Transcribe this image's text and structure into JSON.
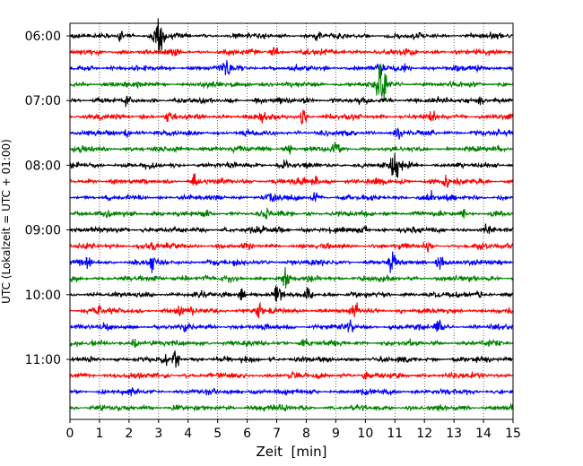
{
  "chart_data": {
    "type": "line",
    "title": "",
    "xlabel": "Zeit  [min]",
    "ylabel": "UTC (Lokalzeit = UTC + 01:00)",
    "xlim": [
      0,
      15
    ],
    "x_ticks": [
      0,
      1,
      2,
      3,
      4,
      5,
      6,
      7,
      8,
      9,
      10,
      11,
      12,
      13,
      14,
      15
    ],
    "grid": {
      "vertical": true,
      "style": "dotted"
    },
    "y_tick_labels": [
      "06:00",
      "07:00",
      "08:00",
      "09:00",
      "10:00",
      "11:00"
    ],
    "y_tick_trace_index": [
      0,
      4,
      8,
      12,
      16,
      20
    ],
    "trace_colors": [
      "#000000",
      "#ff0000",
      "#0000ff",
      "#008000"
    ],
    "traces": [
      {
        "start": "06:00",
        "events": [
          {
            "t": 1.7,
            "amp": 4
          },
          {
            "t": 3.0,
            "amp": 14
          },
          {
            "t": 8.4,
            "amp": 3
          }
        ]
      },
      {
        "start": "06:15",
        "events": [
          {
            "t": 6.9,
            "amp": 5
          },
          {
            "t": 3.5,
            "amp": 2
          }
        ]
      },
      {
        "start": "06:30",
        "events": [
          {
            "t": 5.3,
            "amp": 7
          },
          {
            "t": 10.5,
            "amp": 4
          },
          {
            "t": 11.3,
            "amp": 3
          }
        ]
      },
      {
        "start": "06:45",
        "events": [
          {
            "t": 10.55,
            "amp": 18
          },
          {
            "t": 6.0,
            "amp": 2
          }
        ]
      },
      {
        "start": "07:00",
        "events": [
          {
            "t": 1.9,
            "amp": 4
          },
          {
            "t": 13.9,
            "amp": 5
          },
          {
            "t": 8.0,
            "amp": 3
          }
        ]
      },
      {
        "start": "07:15",
        "events": [
          {
            "t": 3.3,
            "amp": 3
          },
          {
            "t": 6.5,
            "amp": 3
          },
          {
            "t": 7.9,
            "amp": 5
          },
          {
            "t": 12.3,
            "amp": 3
          }
        ]
      },
      {
        "start": "07:30",
        "events": [
          {
            "t": 1.9,
            "amp": 4
          },
          {
            "t": 11.1,
            "amp": 3
          }
        ]
      },
      {
        "start": "07:45",
        "events": [
          {
            "t": 4.5,
            "amp": 3
          },
          {
            "t": 7.4,
            "amp": 5
          },
          {
            "t": 9.0,
            "amp": 5
          }
        ]
      },
      {
        "start": "08:00",
        "events": [
          {
            "t": 11.0,
            "amp": 13
          },
          {
            "t": 7.3,
            "amp": 3
          },
          {
            "t": 11.5,
            "amp": 3
          }
        ]
      },
      {
        "start": "08:15",
        "events": [
          {
            "t": 4.2,
            "amp": 4
          },
          {
            "t": 8.3,
            "amp": 4
          },
          {
            "t": 12.7,
            "amp": 6
          }
        ]
      },
      {
        "start": "08:30",
        "events": [
          {
            "t": 6.8,
            "amp": 5
          },
          {
            "t": 8.3,
            "amp": 4
          },
          {
            "t": 12.2,
            "amp": 3
          }
        ]
      },
      {
        "start": "08:45",
        "events": [
          {
            "t": 4.6,
            "amp": 3
          },
          {
            "t": 6.7,
            "amp": 3
          },
          {
            "t": 13.3,
            "amp": 4
          }
        ]
      },
      {
        "start": "09:00",
        "events": [
          {
            "t": 6.5,
            "amp": 3
          },
          {
            "t": 10.0,
            "amp": 3
          },
          {
            "t": 14.1,
            "amp": 4
          }
        ]
      },
      {
        "start": "09:15",
        "events": [
          {
            "t": 2.8,
            "amp": 3
          },
          {
            "t": 12.1,
            "amp": 3
          }
        ]
      },
      {
        "start": "09:30",
        "events": [
          {
            "t": 0.6,
            "amp": 5
          },
          {
            "t": 2.8,
            "amp": 5
          },
          {
            "t": 10.9,
            "amp": 6
          },
          {
            "t": 12.5,
            "amp": 6
          }
        ]
      },
      {
        "start": "09:45",
        "events": [
          {
            "t": 7.3,
            "amp": 6
          },
          {
            "t": 3.9,
            "amp": 2
          }
        ]
      },
      {
        "start": "10:00",
        "events": [
          {
            "t": 7.0,
            "amp": 10
          },
          {
            "t": 5.8,
            "amp": 6
          },
          {
            "t": 8.1,
            "amp": 6
          },
          {
            "t": 13.8,
            "amp": 4
          }
        ]
      },
      {
        "start": "10:15",
        "events": [
          {
            "t": 1.0,
            "amp": 3
          },
          {
            "t": 3.7,
            "amp": 4
          },
          {
            "t": 9.7,
            "amp": 6
          },
          {
            "t": 6.4,
            "amp": 5
          }
        ]
      },
      {
        "start": "10:30",
        "events": [
          {
            "t": 12.5,
            "amp": 8
          },
          {
            "t": 9.5,
            "amp": 3
          }
        ]
      },
      {
        "start": "10:45",
        "events": [
          {
            "t": 2.2,
            "amp": 5
          },
          {
            "t": 7.9,
            "amp": 3
          }
        ]
      },
      {
        "start": "11:00",
        "events": [
          {
            "t": 3.6,
            "amp": 6
          },
          {
            "t": 3.2,
            "amp": 4
          }
        ]
      },
      {
        "start": "11:15",
        "events": [
          {
            "t": 10.0,
            "amp": 2
          }
        ]
      },
      {
        "start": "11:30",
        "events": [
          {
            "t": 6.2,
            "amp": 2
          }
        ]
      },
      {
        "start": "11:45",
        "events": [
          {
            "t": 6.6,
            "amp": 2
          }
        ]
      }
    ]
  }
}
